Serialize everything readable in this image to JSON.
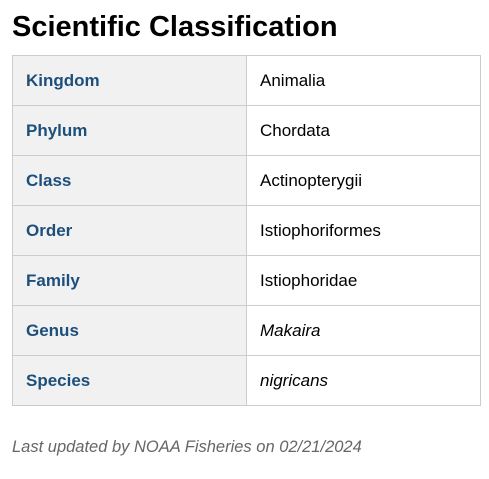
{
  "title": "Scientific Classification",
  "table": {
    "rows": [
      {
        "rank": "Kingdom",
        "value": "Animalia",
        "italic": false
      },
      {
        "rank": "Phylum",
        "value": "Chordata",
        "italic": false
      },
      {
        "rank": "Class",
        "value": "Actinopterygii",
        "italic": false
      },
      {
        "rank": "Order",
        "value": "Istiophoriformes",
        "italic": false
      },
      {
        "rank": "Family",
        "value": "Istiophoridae",
        "italic": false
      },
      {
        "rank": "Genus",
        "value": "Makaira",
        "italic": true
      },
      {
        "rank": "Species",
        "value": "nigricans",
        "italic": true
      }
    ]
  },
  "footer": "Last updated by NOAA Fisheries on 02/21/2024",
  "colors": {
    "rank_text": "#1d4f7c",
    "rank_background": "#f1f1f1",
    "border": "#cccccc",
    "footer_text": "#666666"
  }
}
